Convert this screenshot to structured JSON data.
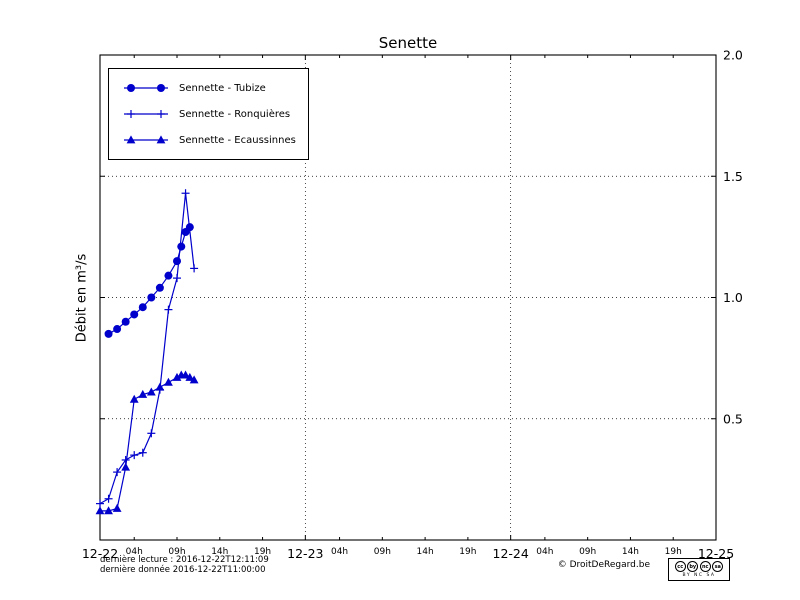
{
  "chart_data": {
    "type": "line",
    "title": "Senette",
    "ylabel": "Débit en m³/s",
    "ylim": [
      0,
      2.0
    ],
    "y_ticks": [
      0.5,
      1.0,
      1.5,
      2.0
    ],
    "y_tick_labels": [
      "0.5",
      "1.0",
      "1.5",
      "2.0"
    ],
    "x_range_hours": [
      0,
      72
    ],
    "x_day_tick_hours": [
      0,
      24,
      48,
      72
    ],
    "x_day_labels": [
      "12-22",
      "12-23",
      "12-24",
      "12-25"
    ],
    "x_hour_offsets": [
      4,
      9,
      14,
      19
    ],
    "x_hour_labels": [
      "04h",
      "09h",
      "14h",
      "19h"
    ],
    "grid": true,
    "legend_position": "upper-left",
    "line_color": "#0000cc",
    "series": [
      {
        "name": "Sennette - Tubize",
        "marker": "circle",
        "x_hours": [
          1,
          2,
          3,
          4,
          5,
          6,
          7,
          8,
          9,
          9.5,
          10,
          10.5
        ],
        "values": [
          0.85,
          0.87,
          0.9,
          0.93,
          0.96,
          1.0,
          1.04,
          1.09,
          1.15,
          1.21,
          1.27,
          1.29
        ]
      },
      {
        "name": "Sennette - Ronquières",
        "marker": "plus",
        "x_hours": [
          0,
          1,
          2,
          3,
          4,
          5,
          6,
          7,
          8,
          9,
          10,
          11
        ],
        "values": [
          0.15,
          0.17,
          0.28,
          0.33,
          0.35,
          0.36,
          0.44,
          0.62,
          0.95,
          1.08,
          1.43,
          1.12
        ]
      },
      {
        "name": "Sennette - Ecaussinnes",
        "marker": "triangle",
        "x_hours": [
          0,
          1,
          2,
          3,
          4,
          5,
          6,
          7,
          8,
          9,
          9.5,
          10,
          10.5,
          11
        ],
        "values": [
          0.12,
          0.12,
          0.13,
          0.3,
          0.58,
          0.6,
          0.61,
          0.63,
          0.65,
          0.67,
          0.68,
          0.68,
          0.67,
          0.66
        ]
      }
    ]
  },
  "footer": {
    "line1": "dernière lecture : 2016-12-22T12:11:09",
    "line2": "dernière donnée  2016-12-22T11:00:00",
    "copyright": "© DroitDeRegard.be"
  },
  "license_badge": {
    "circle_icons": [
      "cc",
      "by",
      "nc",
      "sa"
    ],
    "caption": "BY NC SA"
  }
}
